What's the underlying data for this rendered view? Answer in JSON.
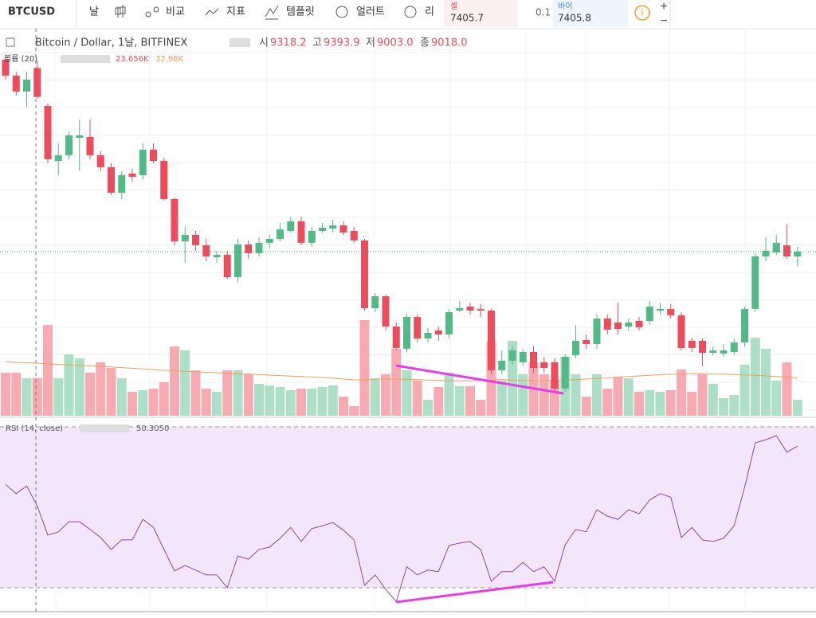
{
  "toolbar": {
    "symbol": "BTCUSD",
    "items": [
      "날",
      "비교",
      "지표",
      "템플릿",
      "얼러트",
      "리"
    ],
    "sell": {
      "label": "셀",
      "price": "7405.7"
    },
    "quantity": "0.1",
    "buy": {
      "label": "바이",
      "price": "7405.8"
    },
    "zoom_in": "+",
    "zoom_out": "−"
  },
  "chart_data": [
    {
      "type": "candlestick",
      "title": "Bitcoin / Dollar, 1날, BITFINEX",
      "legend": [
        {
          "label": "시",
          "value": "9318.2"
        },
        {
          "label": "고",
          "value": "9393.9"
        },
        {
          "label": "저",
          "value": "9003.0"
        },
        {
          "label": "종",
          "value": "9018.0"
        }
      ],
      "up_color": "#53b987",
      "down_color": "#eb4d5c",
      "ylim": [
        5695,
        9696
      ],
      "candles": [
        [
          9406,
          9447,
          9198,
          9240
        ],
        [
          9240,
          9281,
          9032,
          9074
        ],
        [
          9074,
          9281,
          8908,
          9198
        ],
        [
          9318.2,
          9393.9,
          9003,
          9018
        ],
        [
          8924,
          8949,
          8327,
          8368
        ],
        [
          8351,
          8534,
          8202,
          8410
        ],
        [
          8410,
          8659,
          8368,
          8617
        ],
        [
          8592,
          8783,
          8244,
          8617
        ],
        [
          8600,
          8783,
          8368,
          8410
        ],
        [
          8410,
          8451,
          8244,
          8285
        ],
        [
          8285,
          8327,
          7995,
          8019
        ],
        [
          8019,
          8244,
          7953,
          8202
        ],
        [
          8219,
          8268,
          8136,
          8185
        ],
        [
          8202,
          8534,
          8160,
          8468
        ],
        [
          8468,
          8534,
          8327,
          8351
        ],
        [
          8351,
          8385,
          7936,
          7953
        ],
        [
          7953,
          7970,
          7472,
          7513
        ],
        [
          7513,
          7663,
          7289,
          7580
        ],
        [
          7580,
          7621,
          7414,
          7472
        ],
        [
          7472,
          7538,
          7306,
          7355
        ],
        [
          7347,
          7414,
          7289,
          7372
        ],
        [
          7372,
          7414,
          7123,
          7140
        ],
        [
          7140,
          7538,
          7082,
          7480
        ],
        [
          7480,
          7521,
          7331,
          7389
        ],
        [
          7389,
          7555,
          7355,
          7497
        ],
        [
          7497,
          7580,
          7438,
          7538
        ],
        [
          7538,
          7704,
          7513,
          7638
        ],
        [
          7621,
          7770,
          7604,
          7721
        ],
        [
          7721,
          7770,
          7472,
          7497
        ],
        [
          7497,
          7663,
          7455,
          7621
        ],
        [
          7621,
          7704,
          7604,
          7654
        ],
        [
          7646,
          7737,
          7604,
          7679
        ],
        [
          7679,
          7721,
          7580,
          7604
        ],
        [
          7621,
          7663,
          7497,
          7521
        ],
        [
          7521,
          7538,
          6791,
          6816
        ],
        [
          6816,
          6974,
          6774,
          6940
        ],
        [
          6940,
          6957,
          6584,
          6625
        ],
        [
          6625,
          6667,
          6376,
          6401
        ],
        [
          6393,
          6750,
          6359,
          6725
        ],
        [
          6725,
          6750,
          6459,
          6500
        ],
        [
          6500,
          6608,
          6459,
          6559
        ],
        [
          6584,
          6625,
          6476,
          6542
        ],
        [
          6542,
          6808,
          6500,
          6774
        ],
        [
          6791,
          6891,
          6774,
          6816
        ],
        [
          6833,
          6874,
          6750,
          6791
        ],
        [
          6808,
          6858,
          6725,
          6791
        ],
        [
          6791,
          6808,
          6127,
          6169
        ],
        [
          6169,
          6376,
          6127,
          6268
        ],
        [
          6268,
          6418,
          6227,
          6376
        ],
        [
          6252,
          6393,
          6210,
          6359
        ],
        [
          6359,
          6418,
          6144,
          6193
        ],
        [
          6252,
          6310,
          6144,
          6193
        ],
        [
          6252,
          6293,
          5944,
          5978
        ],
        [
          5978,
          6334,
          5944,
          6310
        ],
        [
          6326,
          6642,
          6293,
          6476
        ],
        [
          6484,
          6542,
          6393,
          6442
        ],
        [
          6442,
          6750,
          6393,
          6708
        ],
        [
          6708,
          6750,
          6542,
          6592
        ],
        [
          6667,
          6874,
          6542,
          6600
        ],
        [
          6625,
          6708,
          6584,
          6667
        ],
        [
          6683,
          6725,
          6584,
          6617
        ],
        [
          6683,
          6891,
          6642,
          6833
        ],
        [
          6791,
          6874,
          6750,
          6808
        ],
        [
          6808,
          6858,
          6708,
          6741
        ],
        [
          6741,
          6774,
          6376,
          6401
        ],
        [
          6476,
          6509,
          6359,
          6401
        ],
        [
          6476,
          6500,
          6210,
          6351
        ],
        [
          6351,
          6418,
          6326,
          6376
        ],
        [
          6343,
          6442,
          6310,
          6376
        ],
        [
          6359,
          6500,
          6326,
          6459
        ],
        [
          6459,
          6833,
          6418,
          6808
        ],
        [
          6808,
          7389,
          6774,
          7355
        ],
        [
          7355,
          7555,
          7306,
          7414
        ],
        [
          7397,
          7580,
          7372,
          7497
        ],
        [
          7472,
          7687,
          7331,
          7355
        ],
        [
          7355,
          7455,
          7248,
          7406
        ]
      ]
    },
    {
      "type": "bar",
      "title": "볼륨 (20)",
      "legend_values": [
        "23.656K",
        "32.98K"
      ],
      "up_color": "#a9dcc3",
      "down_color": "#f5a6ae",
      "ma_color": "#f0a05a",
      "ylim": [
        0,
        100
      ],
      "values": [
        27,
        27,
        23.5,
        23.656,
        57,
        23.5,
        38.5,
        36,
        27,
        33.5,
        30,
        23.5,
        15,
        16,
        17,
        21,
        43.5,
        41,
        28.5,
        17,
        15,
        28.5,
        28.5,
        26,
        20,
        19,
        18,
        16,
        17,
        17,
        18,
        19,
        12,
        6,
        60,
        23.5,
        26,
        42,
        28.5,
        22,
        10,
        18,
        27,
        18.5,
        18.5,
        10,
        47,
        22,
        47,
        26,
        33.5,
        26,
        22,
        37,
        26,
        12,
        26,
        17,
        24,
        23.5,
        15,
        16,
        15,
        16,
        29,
        15,
        26,
        20,
        11,
        13,
        32,
        49,
        42,
        22,
        33.5,
        10
      ],
      "ma": [
        34,
        33.5,
        33.2,
        32.98,
        32.6,
        32.2,
        31.9,
        31.6,
        31.3,
        31,
        30.6,
        30.2,
        29.8,
        29.4,
        29,
        28.5,
        28.2,
        27.9,
        27.6,
        27.3,
        27,
        26.7,
        26.4,
        26.1,
        25.8,
        25.5,
        25.2,
        24.9,
        24.6,
        24.3,
        24,
        23.5,
        23,
        22.5,
        22.5,
        23,
        23,
        23,
        22.8,
        22.6,
        22.4,
        22.2,
        22,
        22,
        22,
        22.2,
        22.4,
        22.6,
        22.4,
        22.2,
        22,
        22,
        22.2,
        22.4,
        22.6,
        23,
        23.4,
        23.8,
        24.2,
        24.6,
        25,
        25.4,
        25.8,
        26,
        26.2,
        26.4,
        26.4,
        26.2,
        26,
        25.8,
        25.6,
        25.4,
        25,
        24.6,
        24.2,
        23.8
      ]
    },
    {
      "type": "line",
      "title": "RSI (14, close)",
      "legend_value": "50.3050",
      "color": "#8e44ad",
      "ylim": [
        30,
        70
      ],
      "values": [
        55.7,
        53.4,
        55.3,
        50.305,
        43.1,
        43.9,
        46.4,
        46.4,
        44.5,
        42.5,
        39.5,
        41.9,
        41.9,
        47,
        45,
        39.5,
        34.2,
        35.5,
        34.4,
        33.2,
        33.2,
        30,
        37.9,
        37.1,
        39.5,
        40.1,
        42.3,
        45,
        41.5,
        44.7,
        45.4,
        46.2,
        44.3,
        41.9,
        30.6,
        33.2,
        29.6,
        26.6,
        35.2,
        33.2,
        34.4,
        34,
        40.5,
        41.1,
        41.5,
        39.5,
        31.6,
        34,
        34,
        36.3,
        34,
        35.2,
        31.6,
        40.7,
        44.5,
        43.9,
        49.4,
        47.8,
        47,
        49.4,
        48.4,
        51.8,
        53.4,
        52.5,
        42.5,
        45,
        41.9,
        41.5,
        42.3,
        45.4,
        55,
        66,
        66.8,
        67.8,
        63.7,
        65.2
      ]
    }
  ]
}
